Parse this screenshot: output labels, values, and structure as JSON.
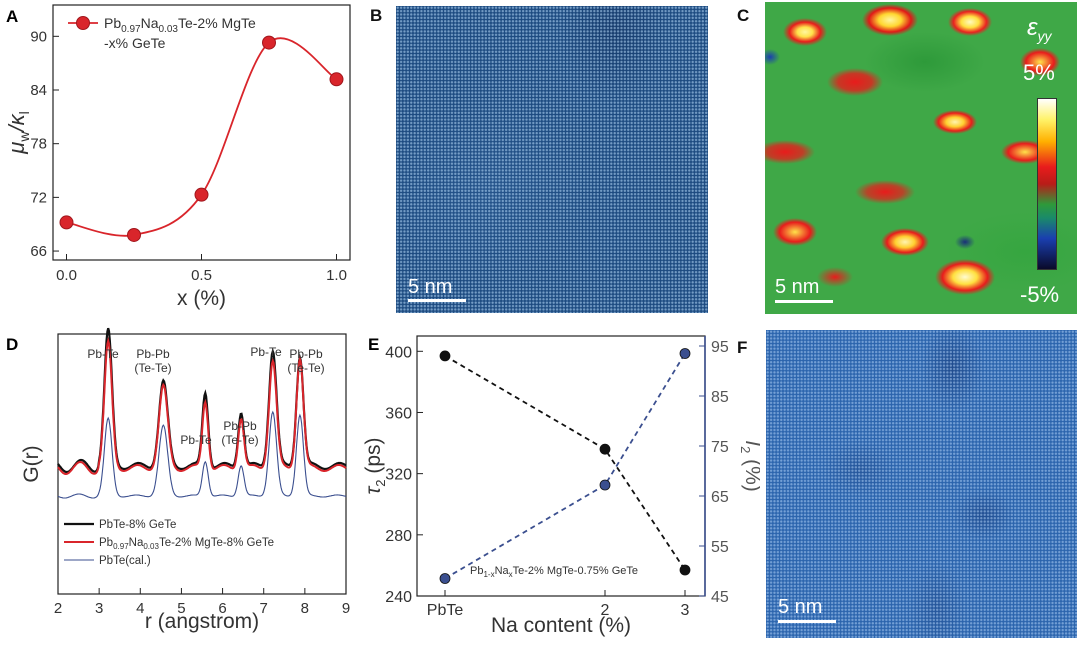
{
  "panel_labels": {
    "a": "A",
    "b": "B",
    "c": "C",
    "d": "D",
    "e": "E",
    "f": "F"
  },
  "scale_bars": {
    "b": "5 nm",
    "c": "5 nm",
    "f": "5 nm"
  },
  "colorbar": {
    "title": "ε",
    "title_sub": "yy",
    "max": "5%",
    "min": "-5%"
  },
  "colors": {
    "red": "#d9252b",
    "navy": "#3b4f8f",
    "black": "#111111",
    "stem_blue": "#1e4f86"
  },
  "chart_data": [
    {
      "id": "A",
      "type": "line",
      "xlabel": "x (%)",
      "ylabel_main": "μ",
      "ylabel_sub1": "w",
      "ylabel_sep": "/κ",
      "ylabel_sub2": "l",
      "xlim": [
        -0.05,
        1.05
      ],
      "ylim": [
        65,
        93.5
      ],
      "xticks": [
        "0.0",
        "0.5",
        "1.0"
      ],
      "yticks": [
        "66",
        "72",
        "78",
        "84",
        "90"
      ],
      "legend": {
        "line1": "Pb",
        "sub1": "0.97",
        "mid": "Na",
        "sub2": "0.03",
        "rest": "Te-2% MgTe",
        "line2": "-x% GeTe"
      },
      "series": [
        {
          "name": "Pb0.97Na0.03Te-2% MgTe-x% GeTe",
          "x": [
            0,
            0.25,
            0.5,
            0.75,
            1.0
          ],
          "y": [
            69.2,
            67.8,
            72.3,
            89.3,
            85.2
          ]
        }
      ]
    },
    {
      "id": "D",
      "type": "line",
      "xlabel": "r (angstrom)",
      "ylabel": "G(r)",
      "xlim": [
        2,
        9
      ],
      "xticks": [
        "2",
        "3",
        "4",
        "5",
        "6",
        "7",
        "8",
        "9"
      ],
      "peak_labels": [
        {
          "l1": "Pb-Te",
          "l2": ""
        },
        {
          "l1": "Pb-Pb",
          "l2": "(Te-Te)"
        },
        {
          "l1": "Pb-Te",
          "l2": ""
        },
        {
          "l1": "Pb-Pb",
          "l2": "(Te-Te)"
        },
        {
          "l1": "Pb-Te",
          "l2": ""
        },
        {
          "l1": "Pb-Pb",
          "l2": "(Te-Te)"
        }
      ],
      "peaks_r": [
        3.22,
        4.56,
        5.58,
        6.45,
        7.22,
        7.88
      ],
      "legend": [
        {
          "name": "PbTe-8% GeTe"
        },
        {
          "name": "Pb0.97Na0.03Te-2% MgTe-8% GeTe",
          "pre": "Pb",
          "s1": "0.97",
          "mid": "Na",
          "s2": "0.03",
          "post": "Te-2% MgTe-8% GeTe"
        },
        {
          "name": "PbTe(cal.)"
        }
      ]
    },
    {
      "id": "E",
      "type": "scatter",
      "xlabel": "Na content (%)",
      "ylabel_left": "τ",
      "ylabel_left_sub": "2",
      "ylabel_left_unit": " (ps)",
      "ylabel_right": "I",
      "ylabel_right_sub": "2",
      "ylabel_right_unit": " (%)",
      "categories": [
        "PbTe",
        "2",
        "3"
      ],
      "x": [
        0,
        2,
        3
      ],
      "ylim_left": [
        240,
        410
      ],
      "ylim_right": [
        45,
        97
      ],
      "yticks_left": [
        "240",
        "280",
        "320",
        "360",
        "400"
      ],
      "yticks_right": [
        "45",
        "55",
        "65",
        "75",
        "85",
        "95"
      ],
      "annotation": {
        "pre": "Pb",
        "s1": "1-x",
        "mid": "Na",
        "s2": "x",
        "post": "Te-2% MgTe-0.75% GeTe"
      },
      "series": [
        {
          "name": "τ2",
          "axis": "left",
          "values": [
            397,
            336,
            257
          ]
        },
        {
          "name": "I2",
          "axis": "right",
          "values": [
            48.5,
            67.2,
            93.5
          ]
        }
      ]
    }
  ]
}
